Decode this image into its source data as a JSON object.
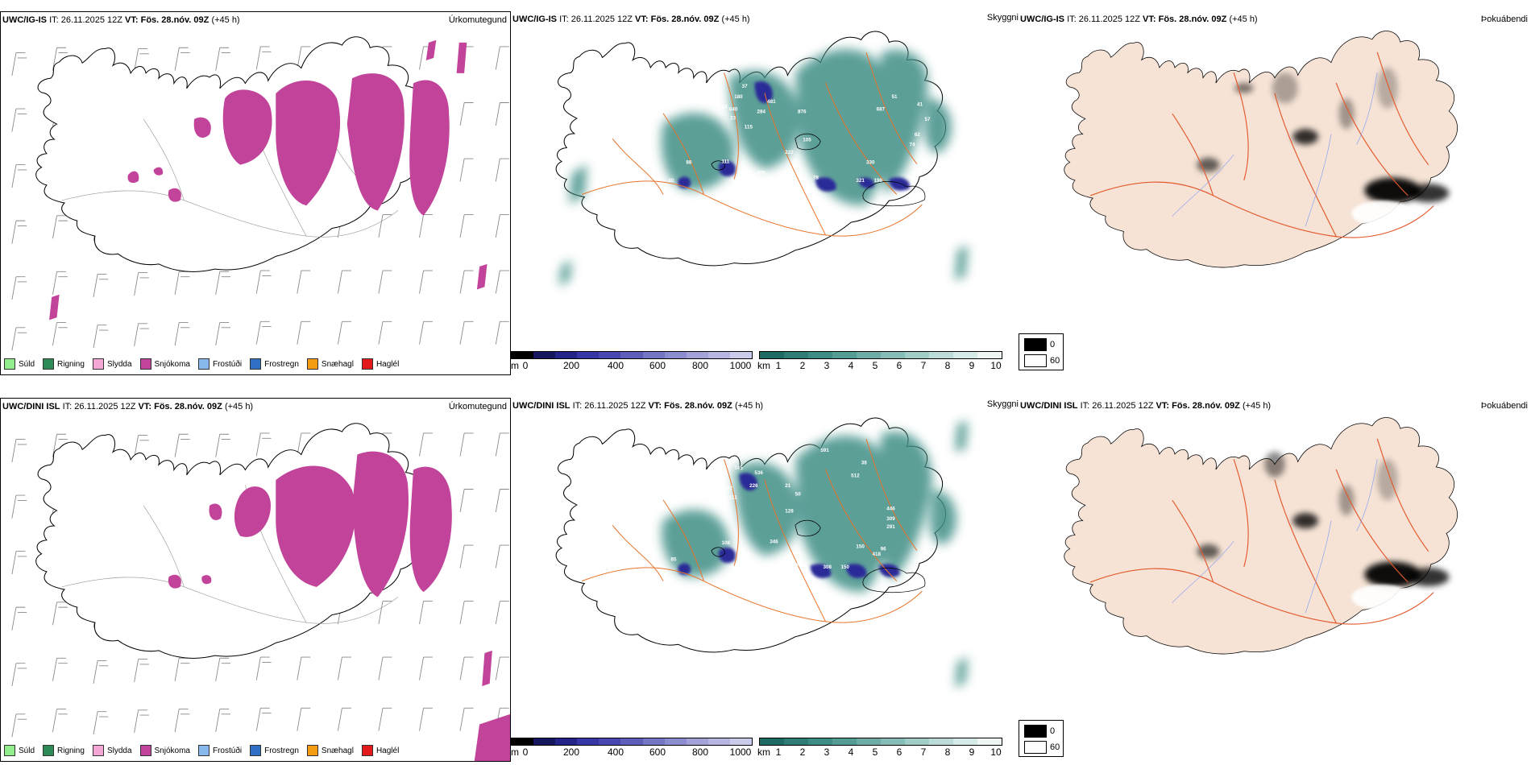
{
  "rows": [
    {
      "model": "UWC/IG-IS",
      "it": "IT: 26.11.2025 12Z",
      "vt": "VT: Fös. 28.nóv. 09Z",
      "lead": "(+45 h)",
      "cloud_peaks": [
        "37",
        "180",
        "23",
        "640",
        "23",
        "481",
        "284",
        "115",
        "876",
        "105",
        "222",
        "51",
        "687",
        "41",
        "57",
        "62",
        "74",
        "88",
        "80",
        "111",
        "205",
        "187",
        "78",
        "330",
        "321",
        "190"
      ]
    },
    {
      "model": "UWC/DINI ISL",
      "it": "IT: 26.11.2025 12Z",
      "vt": "VT: Fös. 28.nóv. 09Z",
      "lead": "(+45 h)",
      "cloud_peaks": [
        "145",
        "333",
        "536",
        "182",
        "226",
        "21",
        "111",
        "50",
        "591",
        "38",
        "512",
        "128",
        "446",
        "309",
        "291",
        "108",
        "85",
        "346",
        "150",
        "418",
        "96",
        "245",
        "159",
        "104",
        "308",
        "150"
      ]
    }
  ],
  "panel_titles": {
    "precip": "Úrkomutegund",
    "cloud": "Skyggni",
    "fog": "Þokuábendi"
  },
  "precip_legend": [
    {
      "label": "Súld",
      "color": "#90ee90"
    },
    {
      "label": "Rigning",
      "color": "#2e8b57"
    },
    {
      "label": "Slydda",
      "color": "#f4a6d4"
    },
    {
      "label": "Snjókoma",
      "color": "#c2449a"
    },
    {
      "label": "Frostúði",
      "color": "#87b9ee"
    },
    {
      "label": "Frostregn",
      "color": "#2f6fc4"
    },
    {
      "label": "Snæhagl",
      "color": "#f39c12"
    },
    {
      "label": "Haglél",
      "color": "#e31a1c"
    }
  ],
  "cloudbase_scale": {
    "unit": "m",
    "ticks": [
      "0",
      "200",
      "400",
      "600",
      "800",
      "1000"
    ],
    "colors": [
      "#000000",
      "#16165e",
      "#23238a",
      "#3636a6",
      "#4848b0",
      "#5e5eba",
      "#7676c6",
      "#8c8cd0",
      "#a2a2d8",
      "#b6b6e0",
      "#caCAea"
    ]
  },
  "visibility_scale": {
    "unit": "km",
    "ticks": [
      "1",
      "2",
      "3",
      "4",
      "5",
      "6",
      "7",
      "8",
      "9",
      "10"
    ],
    "colors": [
      "#1d6b63",
      "#2f7d74",
      "#3e8d84",
      "#559d94",
      "#6dada5",
      "#86bdb6",
      "#a0cdc7",
      "#bbdcd8",
      "#d6ebe8",
      "#eef7f6"
    ]
  },
  "fog_legend": [
    {
      "label": "0",
      "color": "#000000"
    },
    {
      "label": "60",
      "color": "#ffffff"
    }
  ],
  "colors": {
    "snow": "#c2449a",
    "teal": "#3f8f86",
    "land": "#f6e3d6",
    "roads": "#e8742a",
    "rivers": "#7f9cf5"
  }
}
